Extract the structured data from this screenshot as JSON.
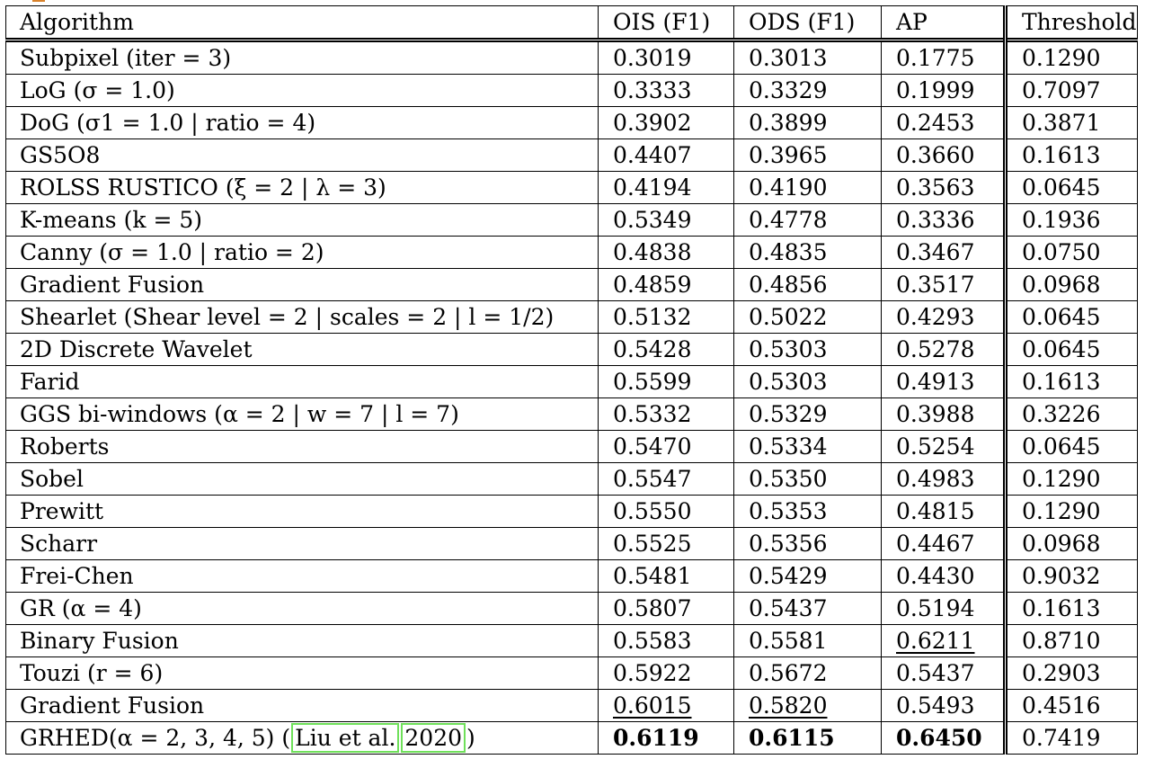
{
  "table": {
    "headers": [
      "Algorithm",
      "OIS (F1)",
      "ODS (F1)",
      "AP",
      "Threshold"
    ],
    "rows": [
      {
        "algorithm": "Subpixel (iter = 3)",
        "ois": "0.3019",
        "ods": "0.3013",
        "ap": "0.1775",
        "threshold": "0.1290"
      },
      {
        "algorithm": "LoG (σ = 1.0)",
        "ois": "0.3333",
        "ods": "0.3329",
        "ap": "0.1999",
        "threshold": "0.7097"
      },
      {
        "algorithm": "DoG (σ1 = 1.0 | ratio = 4)",
        "ois": "0.3902",
        "ods": "0.3899",
        "ap": "0.2453",
        "threshold": "0.3871"
      },
      {
        "algorithm": "GS5O8",
        "ois": "0.4407",
        "ods": "0.3965",
        "ap": "0.3660",
        "threshold": "0.1613"
      },
      {
        "algorithm": "ROLSS RUSTICO (ξ = 2 | λ = 3)",
        "ois": "0.4194",
        "ods": "0.4190",
        "ap": "0.3563",
        "threshold": "0.0645"
      },
      {
        "algorithm": "K-means (k = 5)",
        "ois": "0.5349",
        "ods": "0.4778",
        "ap": "0.3336",
        "threshold": "0.1936"
      },
      {
        "algorithm": "Canny (σ = 1.0 | ratio = 2)",
        "ois": "0.4838",
        "ods": "0.4835",
        "ap": "0.3467",
        "threshold": "0.0750"
      },
      {
        "algorithm": "Gradient Fusion",
        "ois": "0.4859",
        "ods": "0.4856",
        "ap": "0.3517",
        "threshold": "0.0968"
      },
      {
        "algorithm": "Shearlet (Shear level = 2 | scales = 2 | l = 1/2)",
        "ois": "0.5132",
        "ods": "0.5022",
        "ap": "0.4293",
        "threshold": "0.0645"
      },
      {
        "algorithm": "2D Discrete Wavelet",
        "ois": "0.5428",
        "ods": "0.5303",
        "ap": "0.5278",
        "threshold": "0.0645"
      },
      {
        "algorithm": "Farid",
        "ois": "0.5599",
        "ods": "0.5303",
        "ap": "0.4913",
        "threshold": "0.1613"
      },
      {
        "algorithm": "GGS bi-windows (α = 2 | w = 7 | l = 7)",
        "ois": "0.5332",
        "ods": "0.5329",
        "ap": "0.3988",
        "threshold": "0.3226"
      },
      {
        "algorithm": "Roberts",
        "ois": "0.5470",
        "ods": "0.5334",
        "ap": "0.5254",
        "threshold": "0.0645"
      },
      {
        "algorithm": "Sobel",
        "ois": "0.5547",
        "ods": "0.5350",
        "ap": "0.4983",
        "threshold": "0.1290"
      },
      {
        "algorithm": "Prewitt",
        "ois": "0.5550",
        "ods": "0.5353",
        "ap": "0.4815",
        "threshold": "0.1290"
      },
      {
        "algorithm": "Scharr",
        "ois": "0.5525",
        "ods": "0.5356",
        "ap": "0.4467",
        "threshold": "0.0968"
      },
      {
        "algorithm": "Frei-Chen",
        "ois": "0.5481",
        "ods": "0.5429",
        "ap": "0.4430",
        "threshold": "0.9032"
      },
      {
        "algorithm": "GR (α = 4)",
        "ois": "0.5807",
        "ods": "0.5437",
        "ap": "0.5194",
        "threshold": "0.1613"
      },
      {
        "algorithm": "Binary Fusion",
        "ois": "0.5583",
        "ods": "0.5581",
        "ap": "0.6211",
        "threshold": "0.8710"
      },
      {
        "algorithm": "Touzi (r = 6)",
        "ois": "0.5922",
        "ods": "0.5672",
        "ap": "0.5437",
        "threshold": "0.2903"
      },
      {
        "algorithm": "Gradient Fusion",
        "ois": "0.6015",
        "ods": "0.5820",
        "ap": "0.5493",
        "threshold": "0.4516"
      },
      {
        "algorithm_prefix": "GRHED(α = 2, 3, 4, 5) (",
        "cite_author": "Liu et al.",
        "cite_year": "2020",
        "algorithm_suffix": ")",
        "ois": "0.6119",
        "ods": "0.6115",
        "ap": "0.6450",
        "threshold": "0.7419"
      }
    ]
  },
  "colors": {
    "citation_box": "#6fe05a",
    "corner_mark": "#d9822b"
  }
}
